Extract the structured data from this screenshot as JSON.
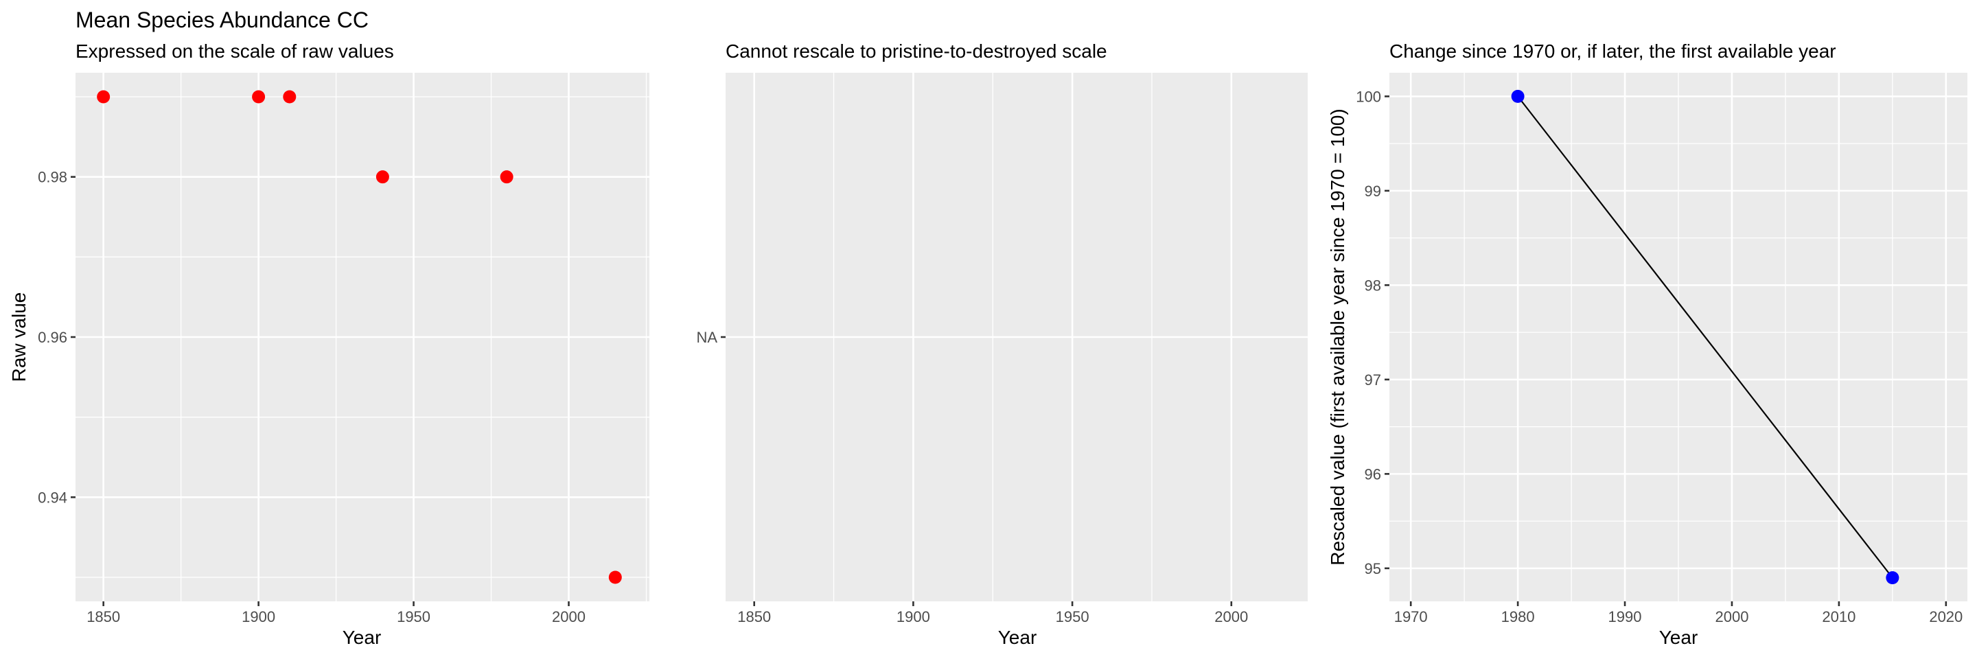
{
  "title": "Mean Species Abundance CC",
  "chart_data": [
    {
      "type": "scatter",
      "subtitle": "Expressed on the scale of raw values",
      "xlabel": "Year",
      "ylabel": "Raw value",
      "x_ticks": [
        "1850",
        "1900",
        "1950",
        "2000"
      ],
      "y_ticks": [
        "0.94",
        "0.96",
        "0.98"
      ],
      "xlim": [
        1841,
        2026
      ],
      "ylim": [
        0.927,
        0.993
      ],
      "grid": true,
      "point_color": "#ff0000",
      "series": [
        {
          "x": [
            1850,
            1900,
            1910,
            1940,
            1980,
            2015
          ],
          "y": [
            0.99,
            0.99,
            0.99,
            0.98,
            0.98,
            0.93
          ]
        }
      ]
    },
    {
      "type": "scatter",
      "subtitle": "Cannot rescale to pristine-to-destroyed scale",
      "xlabel": "Year",
      "ylabel": "",
      "x_ticks": [
        "1850",
        "1900",
        "1950",
        "2000"
      ],
      "y_ticks": [
        "NA"
      ],
      "xlim": [
        1841,
        2024
      ],
      "grid": true,
      "series": []
    },
    {
      "type": "line",
      "subtitle": "Change since 1970 or, if later, the first available year",
      "xlabel": "Year",
      "ylabel": "Rescaled value (first available year since 1970 = 100)",
      "x_ticks": [
        "1970",
        "1980",
        "1990",
        "2000",
        "2010",
        "2020"
      ],
      "y_ticks": [
        "95",
        "96",
        "97",
        "98",
        "99",
        "100"
      ],
      "xlim": [
        1968,
        2022
      ],
      "ylim": [
        94.65,
        100.25
      ],
      "grid": true,
      "point_color": "#0000ff",
      "line_color": "#000000",
      "series": [
        {
          "x": [
            1980,
            2015
          ],
          "y": [
            100,
            94.9
          ]
        }
      ]
    }
  ]
}
